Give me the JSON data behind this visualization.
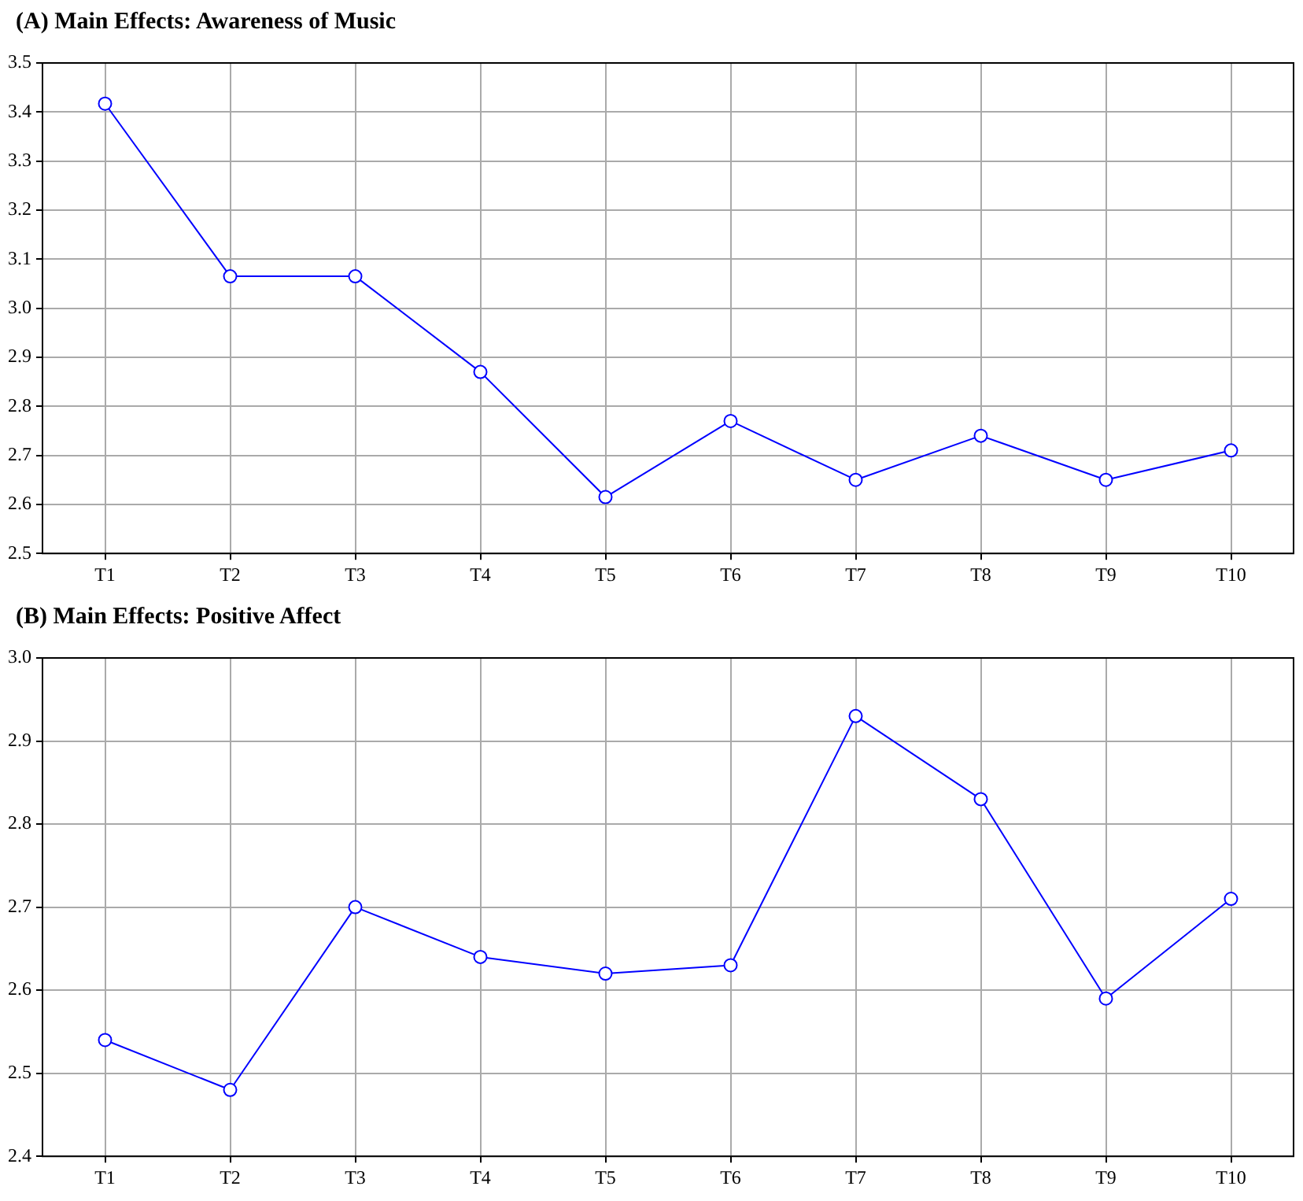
{
  "chart_data": [
    {
      "type": "line",
      "title": "(A)  Main Effects: Awareness of Music",
      "categories": [
        "T1",
        "T2",
        "T3",
        "T4",
        "T5",
        "T6",
        "T7",
        "T8",
        "T9",
        "T10"
      ],
      "series": [
        {
          "color": "#0000ff",
          "values": [
            3.417,
            3.065,
            3.065,
            2.87,
            2.615,
            2.77,
            2.65,
            2.74,
            2.65,
            2.71
          ]
        }
      ],
      "ylim": [
        2.5,
        3.5
      ],
      "yticks": [
        2.5,
        2.6,
        2.7,
        2.8,
        2.9,
        {
          "value": 3.0,
          "label": "3.0"
        },
        3.1,
        3.2,
        3.3,
        3.4,
        3.5
      ],
      "grid": true,
      "marker": "circle",
      "line_style": "solid"
    },
    {
      "type": "line",
      "title": "(B)  Main Effects:  Positive Affect",
      "categories": [
        "T1",
        "T2",
        "T3",
        "T4",
        "T5",
        "T6",
        "T7",
        "T8",
        "T9",
        "T10"
      ],
      "series": [
        {
          "color": "#0000ff",
          "values": [
            2.54,
            2.48,
            2.7,
            2.64,
            2.62,
            2.63,
            2.93,
            2.83,
            2.59,
            2.71
          ]
        }
      ],
      "ylim": [
        2.4,
        3.0
      ],
      "yticks": [
        2.4,
        2.5,
        2.6,
        2.7,
        2.8,
        2.9,
        {
          "value": 3.0,
          "label": "3.0"
        }
      ],
      "grid": true,
      "marker": "circle",
      "line_style": "solid"
    }
  ]
}
